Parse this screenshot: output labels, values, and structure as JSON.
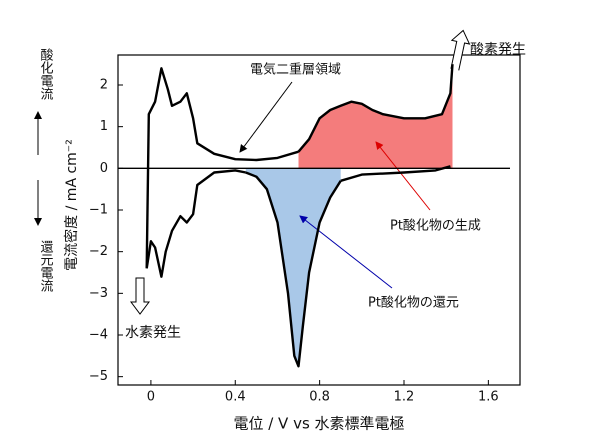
{
  "chart_data": {
    "type": "line",
    "xlabel": "電位 / V vs 水素標準電極",
    "ylabel": "電流密度 / mA cm⁻²",
    "xlim": [
      -0.156,
      1.75
    ],
    "ylim": [
      -5.2,
      2.72
    ],
    "xticks": [
      0,
      0.4,
      0.8,
      1.2,
      1.6
    ],
    "yticks": [
      2,
      1,
      0,
      {
        "value": -1,
        "label": "−1"
      },
      {
        "value": -2,
        "label": "−2"
      },
      {
        "value": -3,
        "label": "−3"
      },
      {
        "value": -4,
        "label": "−4"
      },
      {
        "value": -5,
        "label": "−5"
      }
    ],
    "annotations": {
      "oxidation_current": "酸化電流",
      "reduction_current": "還元電流",
      "oxygen": "酸素発生",
      "hydrogen": "水素発生",
      "double_layer": "電気二重層領域",
      "oxide_formation": "Pt酸化物の生成",
      "oxide_reduction": "Pt酸化物の還元"
    },
    "series": [
      {
        "color": "#000000",
        "x": [
          -0.02,
          -0.01,
          0.02,
          0.05,
          0.08,
          0.1,
          0.14,
          0.17,
          0.2,
          0.22,
          0.3,
          0.4,
          0.5,
          0.6,
          0.7
        ],
        "values": [
          -2.4,
          1.3,
          1.6,
          2.4,
          1.9,
          1.5,
          1.6,
          1.8,
          1.2,
          0.6,
          0.35,
          0.22,
          0.2,
          0.25,
          0.4
        ]
      },
      {
        "color": "#000000",
        "fill": "#f47c7c",
        "x": [
          0.7,
          0.75,
          0.8,
          0.85,
          0.9,
          0.95,
          1.0,
          1.05,
          1.1,
          1.2,
          1.3,
          1.38,
          1.42,
          1.43
        ],
        "values": [
          0.4,
          0.7,
          1.2,
          1.4,
          1.5,
          1.6,
          1.55,
          1.4,
          1.3,
          1.2,
          1.2,
          1.3,
          1.8,
          2.5
        ]
      },
      {
        "color": "#000000",
        "x": [
          1.42,
          1.35,
          1.2,
          1.0,
          0.9
        ],
        "values": [
          0.05,
          -0.05,
          -0.1,
          -0.15,
          -0.3
        ]
      },
      {
        "color": "#000000",
        "fill": "#a9c8e8",
        "x": [
          0.9,
          0.85,
          0.8,
          0.75,
          0.72,
          0.7,
          0.68,
          0.65,
          0.6,
          0.55,
          0.5,
          0.45
        ],
        "values": [
          -0.3,
          -0.7,
          -1.3,
          -2.5,
          -3.8,
          -4.75,
          -4.5,
          -3,
          -1.3,
          -0.5,
          -0.2,
          -0.1
        ]
      },
      {
        "color": "#000000",
        "x": [
          0.45,
          0.4,
          0.3,
          0.22,
          0.2,
          0.17,
          0.14,
          0.1,
          0.07,
          0.05,
          0.02,
          0,
          -0.02
        ],
        "values": [
          -0.1,
          -0.05,
          -0.1,
          -0.4,
          -1.1,
          -1.3,
          -1.15,
          -1.5,
          -2.0,
          -2.6,
          -1.9,
          -1.75,
          -2.4
        ]
      }
    ]
  }
}
